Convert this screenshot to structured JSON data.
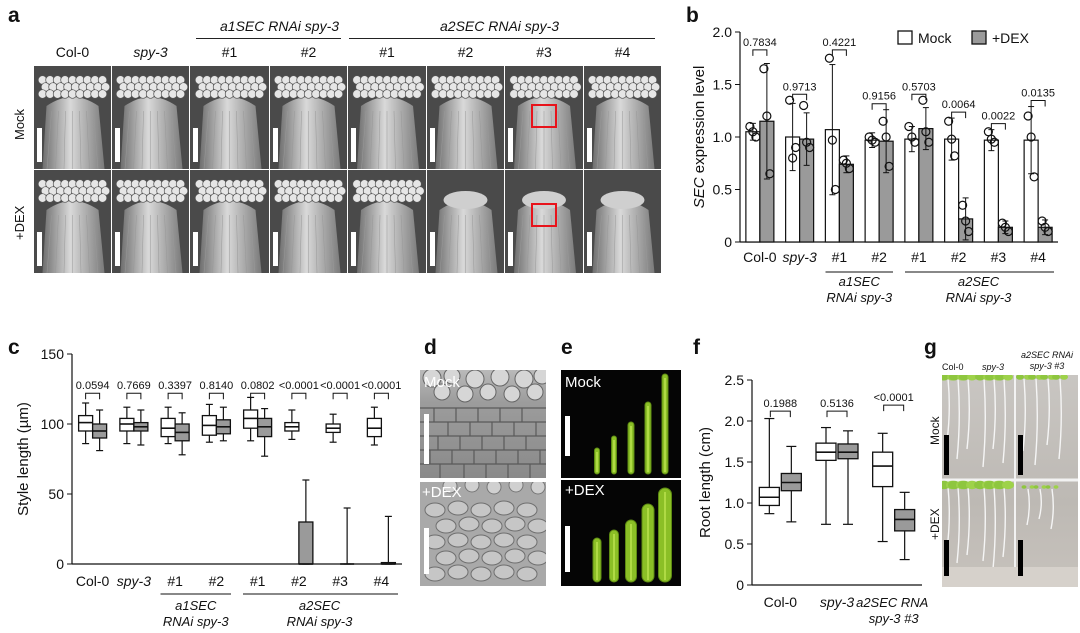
{
  "panels": {
    "a": "a",
    "b": "b",
    "c": "c",
    "d": "d",
    "e": "e",
    "f": "f",
    "g": "g"
  },
  "panel_a": {
    "columns": [
      "Col-0",
      "spy-3",
      "#1",
      "#2",
      "#1",
      "#2",
      "#3",
      "#4"
    ],
    "group1": "a1SEC RNAi spy-3",
    "group2": "a2SEC RNAi spy-3",
    "rows": [
      "Mock",
      "+DEX"
    ]
  },
  "panel_d": {
    "top": "Mock",
    "bottom": "+DEX"
  },
  "panel_e": {
    "top": "Mock",
    "bottom": "+DEX"
  },
  "panel_g": {
    "cols": [
      "Col-0",
      "spy-3",
      "a2SEC RNAi spy-3 #3"
    ],
    "rows": [
      "Mock",
      "+DEX"
    ]
  },
  "colors": {
    "mock": "#ffffff",
    "dex": "#9a9a9a",
    "scale_bar": "#ffffff",
    "highlight": "#e8131b"
  },
  "chart_data": [
    {
      "panel": "b",
      "type": "bar",
      "ylabel_italic": "SEC",
      "ylabel_rest": " expression level",
      "ylim": [
        0,
        2.0
      ],
      "yticks": [
        "0",
        "0.5",
        "1.0",
        "1.5",
        "2.0"
      ],
      "categories": [
        "Col-0",
        "spy-3",
        "#1",
        "#2",
        "#1",
        "#2",
        "#3",
        "#4"
      ],
      "group_labels": [
        {
          "line1": "a1SEC",
          "line2": "RNAi spy-3"
        },
        {
          "line1": "a2SEC",
          "line2": "RNAi spy-3"
        }
      ],
      "legend": {
        "placement": "top-right",
        "mock": "Mock",
        "dex": "+DEX"
      },
      "series": [
        {
          "name": "Mock",
          "values": [
            1.05,
            1.0,
            1.07,
            0.97,
            0.98,
            0.98,
            0.97,
            0.97
          ],
          "err": [
            0.08,
            0.32,
            0.62,
            0.07,
            0.12,
            0.2,
            0.1,
            0.32
          ]
        },
        {
          "name": "+DEX",
          "values": [
            1.15,
            0.98,
            0.74,
            0.96,
            1.08,
            0.22,
            0.14,
            0.14
          ],
          "err": [
            0.55,
            0.25,
            0.08,
            0.3,
            0.2,
            0.2,
            0.06,
            0.07
          ]
        }
      ],
      "points": [
        {
          "mock": [
            1.1,
            1.05,
            1.0
          ],
          "dex": [
            1.65,
            1.2,
            0.65
          ]
        },
        {
          "mock": [
            1.35,
            0.8,
            0.9
          ],
          "dex": [
            1.3,
            0.95,
            0.9
          ]
        },
        {
          "mock": [
            1.75,
            0.97,
            0.5
          ],
          "dex": [
            0.78,
            0.75,
            0.7
          ]
        },
        {
          "mock": [
            1.0,
            0.97,
            0.95
          ],
          "dex": [
            1.15,
            1.0,
            0.72
          ]
        },
        {
          "mock": [
            1.1,
            1.0,
            0.95
          ],
          "dex": [
            1.35,
            1.05,
            0.95
          ]
        },
        {
          "mock": [
            1.15,
            0.98,
            0.82
          ],
          "dex": [
            0.35,
            0.2,
            0.1
          ]
        },
        {
          "mock": [
            1.05,
            0.98,
            0.95
          ],
          "dex": [
            0.18,
            0.14,
            0.1
          ]
        },
        {
          "mock": [
            1.2,
            1.0,
            0.62
          ],
          "dex": [
            0.2,
            0.14,
            0.1
          ]
        }
      ],
      "pvalues": [
        "0.7834",
        "0.9713",
        "0.4221",
        "0.9156",
        "0.5703",
        "0.0064",
        "0.0022",
        "0.0135"
      ]
    },
    {
      "panel": "c",
      "type": "box",
      "ylabel": "Style length (µm)",
      "ylim": [
        0,
        150
      ],
      "yticks": [
        "0",
        "50",
        "100",
        "150"
      ],
      "categories": [
        "Col-0",
        "spy-3",
        "#1",
        "#2",
        "#1",
        "#2",
        "#3",
        "#4"
      ],
      "group_labels": [
        {
          "line1": "a1SEC",
          "line2": "RNAi spy-3"
        },
        {
          "line1": "a2SEC",
          "line2": "RNAi spy-3"
        }
      ],
      "pvalues": [
        "0.0594",
        "0.7669",
        "0.3397",
        "0.8140",
        "0.0802",
        "<0.0001",
        "<0.0001",
        "<0.0001"
      ],
      "mock": [
        [
          86,
          95,
          101,
          106,
          115
        ],
        [
          86,
          95,
          100,
          104,
          112
        ],
        [
          86,
          91,
          97,
          104,
          112
        ],
        [
          87,
          92,
          99,
          106,
          114
        ],
        [
          88,
          97,
          104,
          110,
          119
        ],
        [
          89,
          95,
          98,
          101,
          110
        ],
        [
          87,
          94,
          97,
          100,
          107
        ],
        [
          85,
          91,
          97,
          104,
          112
        ]
      ],
      "dex": [
        [
          81,
          90,
          95,
          100,
          110
        ],
        [
          85,
          95,
          98,
          101,
          110
        ],
        [
          78,
          88,
          94,
          100,
          108
        ],
        [
          88,
          93,
          98,
          103,
          112
        ],
        [
          77,
          91,
          98,
          104,
          111
        ],
        [
          0,
          0,
          0,
          30,
          60
        ],
        [
          0,
          0,
          0,
          0,
          40
        ],
        [
          0,
          0,
          0,
          1,
          34
        ]
      ]
    },
    {
      "panel": "f",
      "type": "box",
      "ylabel": "Root length (cm)",
      "ylim": [
        0,
        2.5
      ],
      "yticks": [
        "0",
        "0.5",
        "1.0",
        "1.5",
        "2.0",
        "2.5"
      ],
      "categories": [
        "Col-0",
        "spy-3",
        "a2SEC RNAi spy-3 #3"
      ],
      "pvalues": [
        "0.1988",
        "0.5136",
        "<0.0001"
      ],
      "mock": [
        [
          0.87,
          0.97,
          1.07,
          1.19,
          2.03
        ],
        [
          0.74,
          1.52,
          1.62,
          1.73,
          1.92
        ],
        [
          0.53,
          1.2,
          1.45,
          1.62,
          1.85
        ]
      ],
      "dex": [
        [
          0.77,
          1.15,
          1.25,
          1.36,
          1.69
        ],
        [
          0.74,
          1.54,
          1.62,
          1.72,
          1.88
        ],
        [
          0.31,
          0.66,
          0.8,
          0.92,
          1.13
        ]
      ]
    }
  ]
}
